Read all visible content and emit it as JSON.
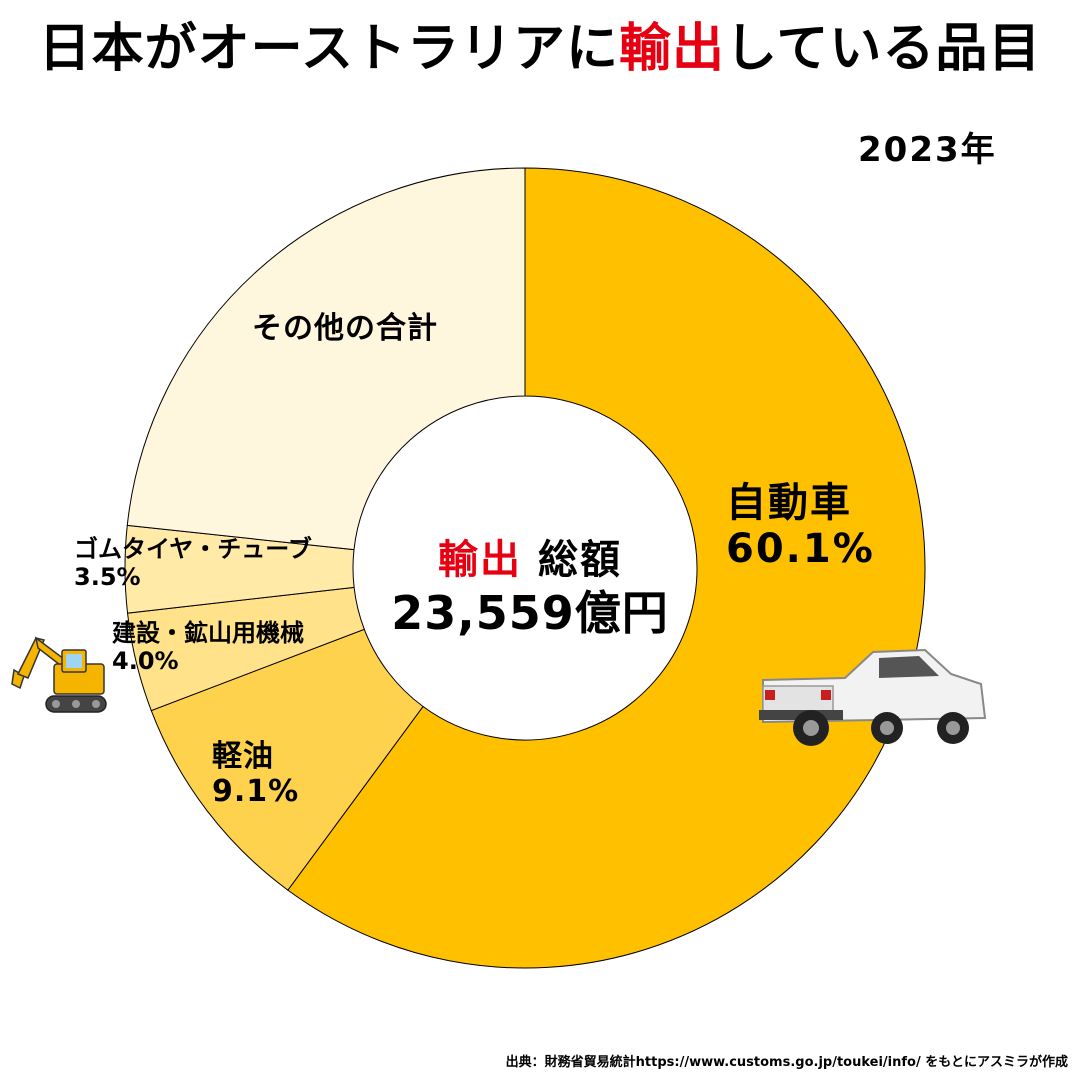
{
  "title": {
    "before": "日本がオーストラリアに",
    "highlight": "輸出",
    "after": "している品目"
  },
  "year": "2023年",
  "center": {
    "label_highlight": "輸出",
    "label_rest": "総額",
    "total": "23,559億円"
  },
  "source": "出典：財務省貿易統計https://www.customs.go.jp/toukei/info/ をもとにアスミラが作成",
  "colors": {
    "highlight": "#e60012",
    "cars": "#ffc000",
    "diesel": "#ffd24d",
    "machinery": "#ffe28a",
    "tires": "#ffeaa8",
    "others": "#fff6de",
    "outline": "#000000"
  },
  "icons": {
    "truck": "pickup-truck-icon",
    "excavator": "excavator-icon"
  },
  "chart_data": {
    "type": "pie",
    "donut": true,
    "start_angle": "12 o'clock",
    "direction": "clockwise",
    "unit": "%",
    "slices": [
      {
        "name": "自動車",
        "value": 60.1,
        "value_label": "60.1%"
      },
      {
        "name": "軽油",
        "value": 9.1,
        "value_label": "9.1%"
      },
      {
        "name": "建設・鉱山用機械",
        "value": 4.0,
        "value_label": "4.0%"
      },
      {
        "name": "ゴムタイヤ・チューブ",
        "value": 3.5,
        "value_label": "3.5%"
      },
      {
        "name": "その他の合計",
        "value": 23.3,
        "value_label": ""
      }
    ]
  }
}
